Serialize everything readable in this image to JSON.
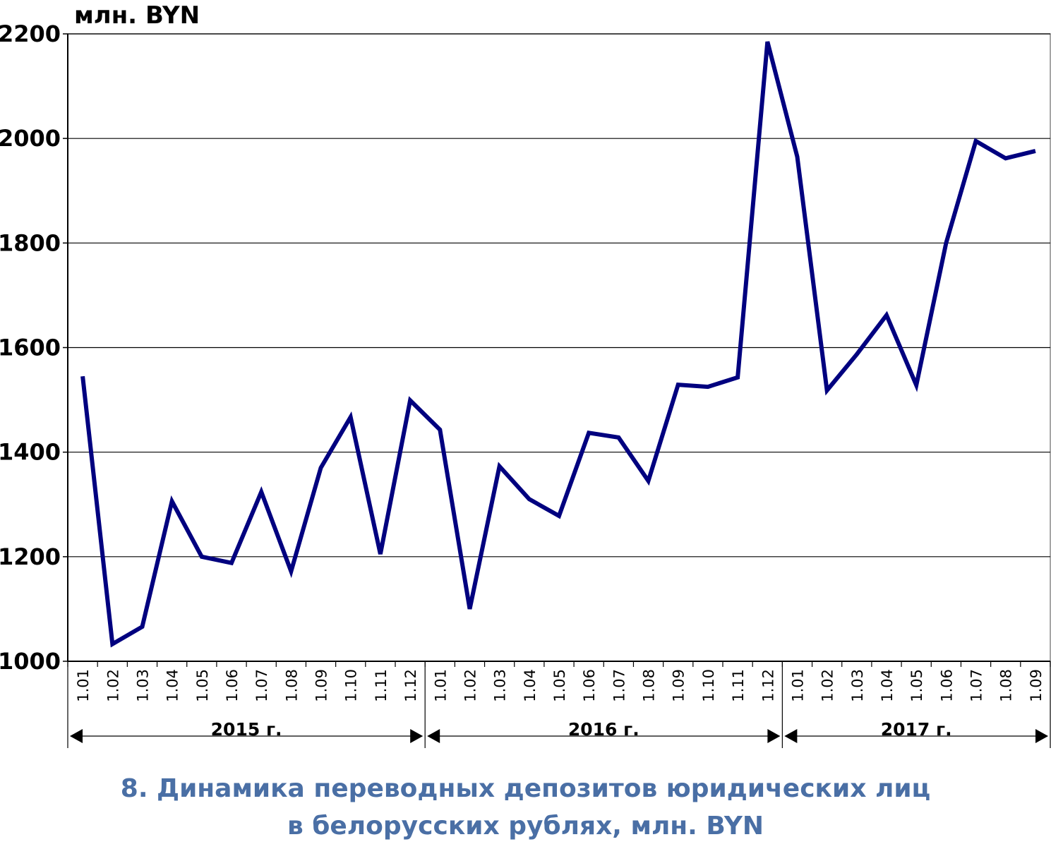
{
  "chart_data": {
    "type": "line",
    "unit_label": "млн. BYN",
    "ylim": [
      1000,
      2200
    ],
    "yticks": [
      1000,
      1200,
      1400,
      1600,
      1800,
      2000,
      2200
    ],
    "grid": true,
    "categories": [
      "1.01",
      "1.02",
      "1.03",
      "1.04",
      "1.05",
      "1.06",
      "1.07",
      "1.08",
      "1.09",
      "1.10",
      "1.11",
      "1.12",
      "1.01",
      "1.02",
      "1.03",
      "1.04",
      "1.05",
      "1.06",
      "1.07",
      "1.08",
      "1.09",
      "1.10",
      "1.11",
      "1.12",
      "1.01",
      "1.02",
      "1.03",
      "1.04",
      "1.05",
      "1.06",
      "1.07",
      "1.08",
      "1.09"
    ],
    "years": [
      {
        "label": "2015 г.",
        "start": 0,
        "end": 11
      },
      {
        "label": "2016 г.",
        "start": 12,
        "end": 23
      },
      {
        "label": "2017 г.",
        "start": 24,
        "end": 32
      }
    ],
    "series": [
      {
        "color": "#00007f",
        "values": [
          1545,
          1033,
          1066,
          1306,
          1200,
          1188,
          1324,
          1172,
          1370,
          1467,
          1205,
          1499,
          1443,
          1100,
          1373,
          1310,
          1278,
          1437,
          1428,
          1345,
          1529,
          1525,
          1543,
          2185,
          1965,
          1518,
          1587,
          1662,
          1528,
          1800,
          1995,
          1962,
          1976
        ]
      }
    ]
  },
  "caption": {
    "line1": "8. Динамика переводных депозитов юридических лиц",
    "line2": "в белорусских рублях, млн. BYN",
    "color": "#4a6fa5"
  }
}
